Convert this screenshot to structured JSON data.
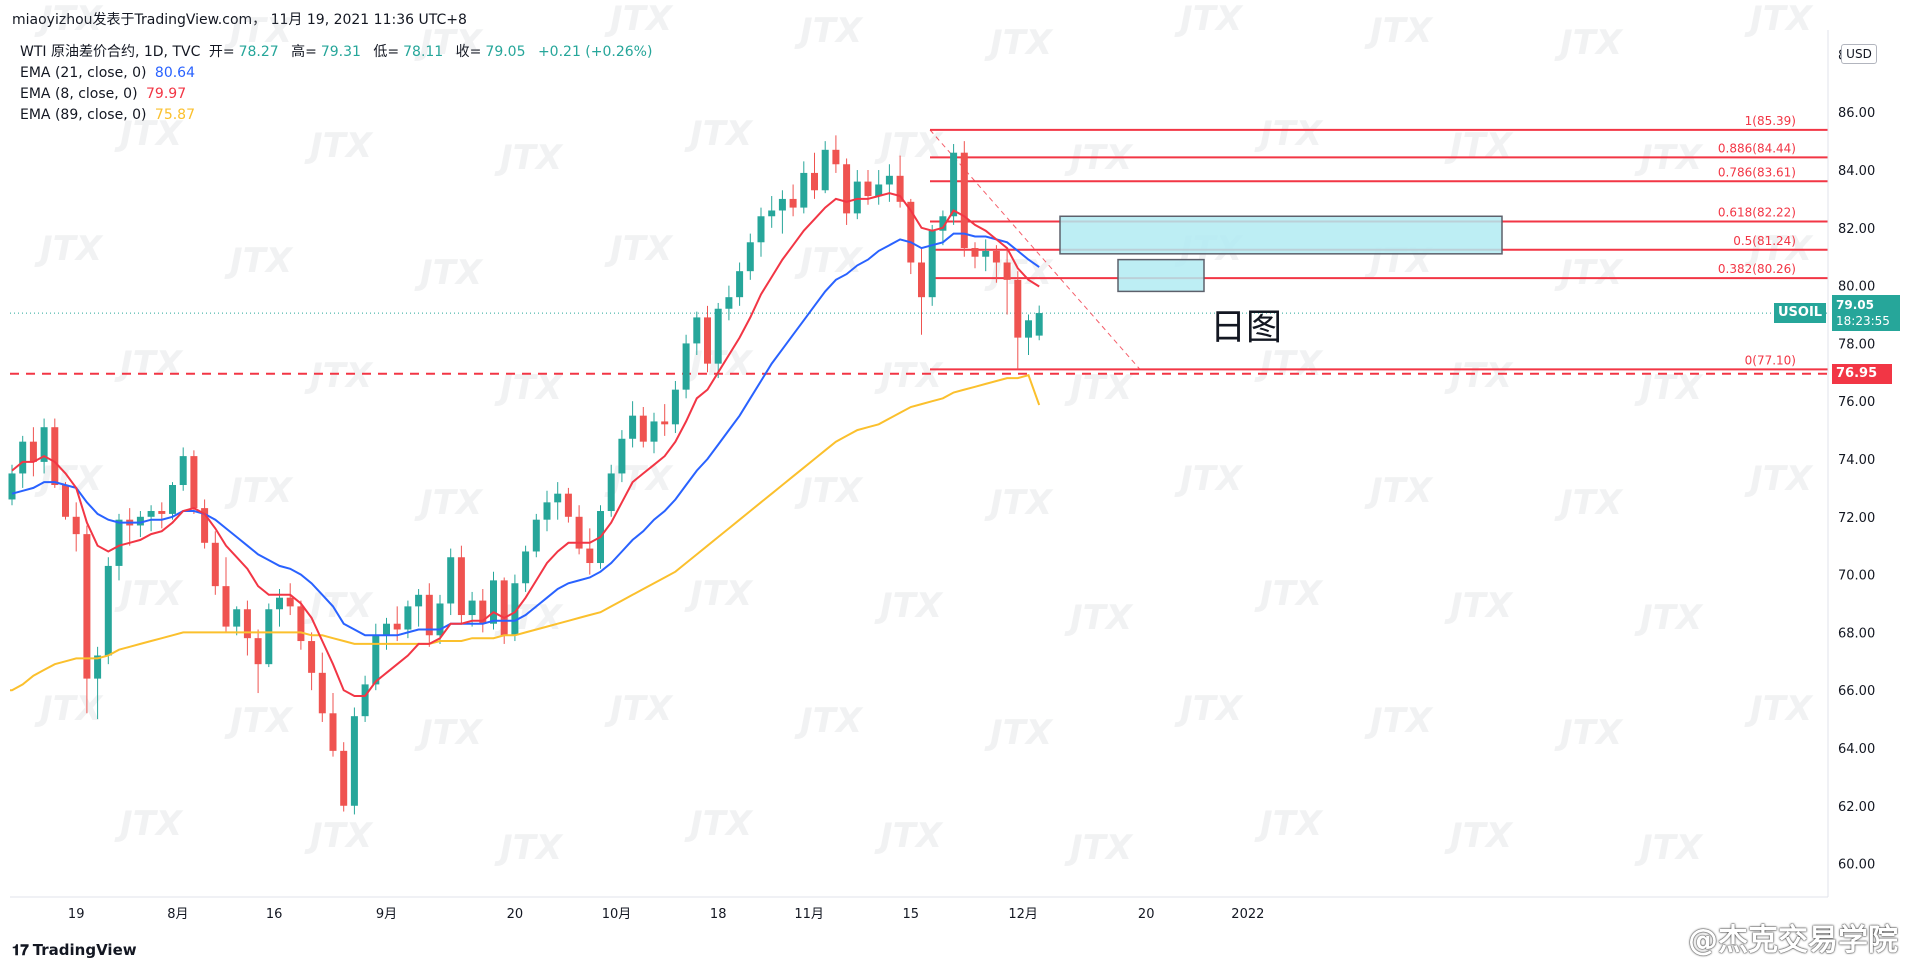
{
  "header": {
    "publisher": "miaoyizhou发表于TradingView.com， 11月 19, 2021 11:36 UTC+8"
  },
  "legend": {
    "symbol_line": "WTI 原油差价合约, 1D, TVC",
    "open_label": "开=",
    "open": "78.27",
    "high_label": "高=",
    "high": "79.31",
    "low_label": "低=",
    "low": "78.11",
    "close_label": "收=",
    "close": "79.05",
    "change": "+0.21 (+0.26%)",
    "ema21_label": "EMA (21, close, 0)",
    "ema21": "80.64",
    "ema8_label": "EMA (8, close, 0)",
    "ema8": "79.97",
    "ema89_label": "EMA (89, close, 0)",
    "ema89": "75.87"
  },
  "colors": {
    "up": "#26a69a",
    "down": "#ef5350",
    "ema21": "#2962ff",
    "ema8": "#f23645",
    "ema89": "#fbc02d",
    "fib": "#f23645",
    "zone_fill": "#b2ebf2",
    "zone_stroke": "#5d606b"
  },
  "price_scale": {
    "currency": "USD",
    "ticks": [
      "88.00",
      "86.00",
      "84.00",
      "82.00",
      "80.00",
      "78.00",
      "76.00",
      "74.00",
      "72.00",
      "70.00",
      "68.00",
      "66.00",
      "64.00",
      "62.00",
      "60.00"
    ],
    "symbol_tag": "USOIL",
    "last_price": "79.05",
    "countdown": "18:23:55",
    "level_tag": "76.95"
  },
  "time_axis": {
    "labels": [
      "19",
      "8月",
      "16",
      "9月",
      "20",
      "10月",
      "18",
      "11月",
      "15",
      "12月",
      "20",
      "2022"
    ]
  },
  "fib": {
    "labels": [
      "1(85.39)",
      "0.886(84.44)",
      "0.786(83.61)",
      "0.618(82.22)",
      "0.5(81.24)",
      "0.382(80.26)",
      "0(77.10)"
    ]
  },
  "annotation": {
    "day_label": "日图"
  },
  "watermark": {
    "weibo": "@杰克交易学院",
    "brand": "JTX"
  },
  "footer": {
    "brand": "TradingView"
  },
  "chart_data": {
    "type": "candlestick",
    "title": "WTI 原油差价合约, 1D, TVC",
    "y_range": [
      59.5,
      88.5
    ],
    "candles": [
      [
        72.6,
        73.8,
        72.4,
        73.5
      ],
      [
        73.5,
        74.8,
        73.0,
        74.6
      ],
      [
        74.6,
        75.1,
        73.4,
        73.9
      ],
      [
        73.9,
        75.4,
        73.5,
        75.1
      ],
      [
        75.1,
        75.4,
        73.0,
        73.1
      ],
      [
        73.1,
        73.2,
        71.9,
        72.0
      ],
      [
        72.0,
        72.5,
        70.8,
        71.4
      ],
      [
        71.4,
        71.7,
        65.2,
        66.4
      ],
      [
        66.4,
        67.5,
        65.0,
        67.2
      ],
      [
        67.2,
        70.6,
        66.9,
        70.3
      ],
      [
        70.3,
        72.1,
        69.8,
        71.9
      ],
      [
        71.9,
        72.3,
        71.0,
        71.7
      ],
      [
        71.7,
        72.2,
        71.3,
        72.0
      ],
      [
        72.0,
        72.4,
        71.5,
        72.2
      ],
      [
        72.2,
        72.5,
        71.6,
        72.1
      ],
      [
        72.1,
        73.2,
        71.9,
        73.1
      ],
      [
        73.1,
        74.4,
        72.9,
        74.1
      ],
      [
        74.1,
        74.3,
        72.1,
        72.3
      ],
      [
        72.3,
        72.6,
        70.9,
        71.1
      ],
      [
        71.1,
        71.5,
        69.3,
        69.6
      ],
      [
        69.6,
        70.6,
        68.0,
        68.2
      ],
      [
        68.2,
        68.9,
        67.9,
        68.8
      ],
      [
        68.8,
        69.1,
        67.2,
        67.8
      ],
      [
        67.8,
        68.1,
        65.9,
        66.9
      ],
      [
        66.9,
        69.0,
        66.8,
        68.8
      ],
      [
        68.8,
        69.5,
        68.2,
        69.2
      ],
      [
        69.2,
        69.7,
        68.6,
        68.9
      ],
      [
        68.9,
        69.1,
        67.4,
        67.7
      ],
      [
        67.7,
        68.0,
        66.0,
        66.6
      ],
      [
        66.6,
        67.3,
        64.9,
        65.2
      ],
      [
        65.2,
        65.9,
        63.7,
        63.9
      ],
      [
        63.9,
        64.2,
        61.8,
        62.0
      ],
      [
        62.0,
        65.4,
        61.7,
        65.1
      ],
      [
        65.1,
        66.5,
        64.9,
        66.2
      ],
      [
        66.2,
        68.3,
        66.0,
        67.9
      ],
      [
        67.9,
        68.5,
        67.4,
        68.3
      ],
      [
        68.3,
        68.9,
        67.7,
        68.1
      ],
      [
        68.1,
        69.1,
        67.8,
        68.9
      ],
      [
        68.9,
        69.5,
        68.2,
        69.3
      ],
      [
        69.3,
        69.7,
        67.5,
        67.9
      ],
      [
        67.9,
        69.3,
        67.6,
        69.0
      ],
      [
        69.0,
        70.9,
        68.6,
        70.6
      ],
      [
        70.6,
        71.0,
        68.3,
        68.6
      ],
      [
        68.6,
        69.4,
        68.2,
        69.1
      ],
      [
        69.1,
        69.5,
        68.0,
        68.3
      ],
      [
        68.3,
        70.1,
        68.1,
        69.8
      ],
      [
        69.8,
        69.9,
        67.6,
        67.9
      ],
      [
        67.9,
        70.0,
        67.7,
        69.7
      ],
      [
        69.7,
        71.0,
        69.4,
        70.8
      ],
      [
        70.8,
        72.1,
        70.6,
        71.9
      ],
      [
        71.9,
        72.9,
        71.5,
        72.5
      ],
      [
        72.5,
        73.2,
        71.9,
        72.8
      ],
      [
        72.8,
        73.0,
        71.8,
        72.0
      ],
      [
        72.0,
        72.4,
        70.7,
        70.9
      ],
      [
        70.9,
        71.6,
        70.0,
        70.4
      ],
      [
        70.4,
        72.4,
        70.2,
        72.2
      ],
      [
        72.2,
        73.8,
        72.0,
        73.5
      ],
      [
        73.5,
        75.0,
        73.2,
        74.7
      ],
      [
        74.7,
        76.0,
        74.4,
        75.5
      ],
      [
        75.5,
        75.8,
        74.4,
        74.6
      ],
      [
        74.6,
        75.6,
        74.2,
        75.3
      ],
      [
        75.3,
        75.9,
        74.8,
        75.2
      ],
      [
        75.2,
        76.7,
        74.9,
        76.4
      ],
      [
        76.4,
        78.3,
        76.1,
        78.0
      ],
      [
        78.0,
        79.1,
        77.6,
        78.9
      ],
      [
        78.9,
        79.3,
        77.0,
        77.3
      ],
      [
        77.3,
        79.4,
        76.8,
        79.2
      ],
      [
        79.2,
        80.0,
        78.8,
        79.6
      ],
      [
        79.6,
        80.8,
        79.3,
        80.5
      ],
      [
        80.5,
        81.8,
        80.2,
        81.5
      ],
      [
        81.5,
        82.7,
        81.0,
        82.4
      ],
      [
        82.4,
        83.1,
        82.0,
        82.6
      ],
      [
        82.6,
        83.3,
        81.8,
        83.0
      ],
      [
        83.0,
        83.5,
        82.4,
        82.7
      ],
      [
        82.7,
        84.3,
        82.5,
        83.9
      ],
      [
        83.9,
        84.6,
        83.0,
        83.3
      ],
      [
        83.3,
        85.0,
        83.2,
        84.7
      ],
      [
        84.7,
        85.2,
        83.9,
        84.2
      ],
      [
        84.2,
        84.4,
        82.1,
        82.5
      ],
      [
        82.5,
        84.0,
        82.3,
        83.6
      ],
      [
        83.6,
        84.0,
        82.8,
        83.1
      ],
      [
        83.1,
        84.0,
        82.8,
        83.5
      ],
      [
        83.5,
        84.2,
        82.9,
        83.8
      ],
      [
        83.8,
        84.5,
        82.7,
        82.9
      ],
      [
        82.9,
        83.0,
        80.4,
        80.8
      ],
      [
        80.8,
        81.3,
        78.3,
        79.6
      ],
      [
        79.6,
        82.1,
        79.3,
        81.9
      ],
      [
        81.9,
        82.6,
        81.4,
        82.4
      ],
      [
        82.4,
        84.9,
        82.1,
        84.6
      ],
      [
        84.6,
        85.0,
        81.0,
        81.3
      ],
      [
        81.3,
        81.5,
        80.6,
        81.0
      ],
      [
        81.0,
        81.6,
        80.5,
        81.2
      ],
      [
        81.2,
        81.4,
        80.1,
        80.8
      ],
      [
        80.8,
        81.3,
        79.0,
        80.2
      ],
      [
        80.2,
        80.5,
        77.1,
        78.2
      ],
      [
        78.2,
        79.0,
        77.6,
        78.8
      ],
      [
        78.27,
        79.31,
        78.11,
        79.05
      ]
    ],
    "ema8": [
      73.6,
      73.9,
      73.9,
      74.1,
      73.9,
      73.5,
      73.0,
      71.8,
      71.0,
      70.8,
      71.0,
      71.1,
      71.2,
      71.4,
      71.5,
      71.8,
      72.2,
      72.3,
      72.1,
      71.6,
      71.0,
      70.6,
      70.2,
      69.6,
      69.3,
      69.3,
      69.3,
      69.0,
      68.5,
      67.7,
      66.9,
      66.0,
      65.8,
      65.8,
      66.3,
      66.6,
      66.9,
      67.2,
      67.6,
      67.6,
      67.8,
      68.3,
      68.3,
      68.4,
      68.4,
      68.7,
      68.5,
      68.7,
      69.2,
      69.8,
      70.4,
      70.8,
      71.1,
      71.1,
      71.1,
      71.3,
      71.8,
      72.5,
      73.2,
      73.5,
      73.8,
      74.1,
      74.6,
      75.3,
      76.1,
      76.4,
      77.0,
      77.6,
      78.2,
      78.9,
      79.7,
      80.3,
      80.9,
      81.4,
      81.9,
      82.3,
      82.7,
      83.0,
      82.9,
      83.0,
      83.0,
      83.1,
      83.2,
      83.1,
      82.6,
      82.0,
      81.9,
      82.0,
      82.6,
      82.4,
      82.1,
      81.9,
      81.6,
      81.3,
      80.6,
      80.2,
      79.97
    ],
    "ema21": [
      72.8,
      72.9,
      73.0,
      73.2,
      73.2,
      73.1,
      73.0,
      72.5,
      72.1,
      71.9,
      71.8,
      71.8,
      71.8,
      71.9,
      71.9,
      72.0,
      72.2,
      72.2,
      72.1,
      71.9,
      71.6,
      71.3,
      71.0,
      70.7,
      70.5,
      70.3,
      70.2,
      70.0,
      69.7,
      69.3,
      68.9,
      68.3,
      68.1,
      67.9,
      67.9,
      67.9,
      67.9,
      68.0,
      68.1,
      68.1,
      68.1,
      68.3,
      68.3,
      68.3,
      68.3,
      68.4,
      68.4,
      68.4,
      68.6,
      68.9,
      69.2,
      69.5,
      69.7,
      69.8,
      69.9,
      70.1,
      70.4,
      70.8,
      71.2,
      71.5,
      71.9,
      72.2,
      72.6,
      73.1,
      73.6,
      74.0,
      74.5,
      75.0,
      75.5,
      76.1,
      76.7,
      77.3,
      77.8,
      78.3,
      78.8,
      79.3,
      79.8,
      80.2,
      80.4,
      80.7,
      80.9,
      81.2,
      81.4,
      81.6,
      81.5,
      81.3,
      81.4,
      81.5,
      81.8,
      81.8,
      81.7,
      81.7,
      81.6,
      81.5,
      81.2,
      80.9,
      80.64
    ],
    "ema89": [
      66.0,
      66.2,
      66.5,
      66.7,
      66.9,
      67.0,
      67.1,
      67.1,
      67.1,
      67.2,
      67.4,
      67.5,
      67.6,
      67.7,
      67.8,
      67.9,
      68.0,
      68.0,
      68.0,
      68.0,
      68.0,
      68.0,
      68.0,
      68.0,
      68.0,
      68.0,
      68.0,
      68.0,
      67.9,
      67.9,
      67.8,
      67.7,
      67.6,
      67.6,
      67.6,
      67.6,
      67.6,
      67.6,
      67.6,
      67.6,
      67.7,
      67.7,
      67.7,
      67.8,
      67.8,
      67.8,
      67.9,
      67.9,
      68.0,
      68.1,
      68.2,
      68.3,
      68.4,
      68.5,
      68.6,
      68.7,
      68.9,
      69.1,
      69.3,
      69.5,
      69.7,
      69.9,
      70.1,
      70.4,
      70.7,
      71.0,
      71.3,
      71.6,
      71.9,
      72.2,
      72.5,
      72.8,
      73.1,
      73.4,
      73.7,
      74.0,
      74.3,
      74.6,
      74.8,
      75.0,
      75.1,
      75.2,
      75.4,
      75.6,
      75.8,
      75.9,
      76.0,
      76.1,
      76.3,
      76.4,
      76.5,
      76.6,
      76.7,
      76.8,
      76.8,
      76.9,
      75.87
    ],
    "fib_levels": [
      {
        "ratio": "1",
        "price": 85.39
      },
      {
        "ratio": "0.886",
        "price": 84.44
      },
      {
        "ratio": "0.786",
        "price": 83.61
      },
      {
        "ratio": "0.618",
        "price": 82.22
      },
      {
        "ratio": "0.5",
        "price": 81.24
      },
      {
        "ratio": "0.382",
        "price": 80.26
      },
      {
        "ratio": "0",
        "price": 77.1
      }
    ],
    "horizontal_level": 76.95,
    "zones": [
      {
        "from_price": 81.1,
        "to_price": 82.4
      },
      {
        "from_price": 79.8,
        "to_price": 80.9
      }
    ],
    "last_price": 79.05
  }
}
